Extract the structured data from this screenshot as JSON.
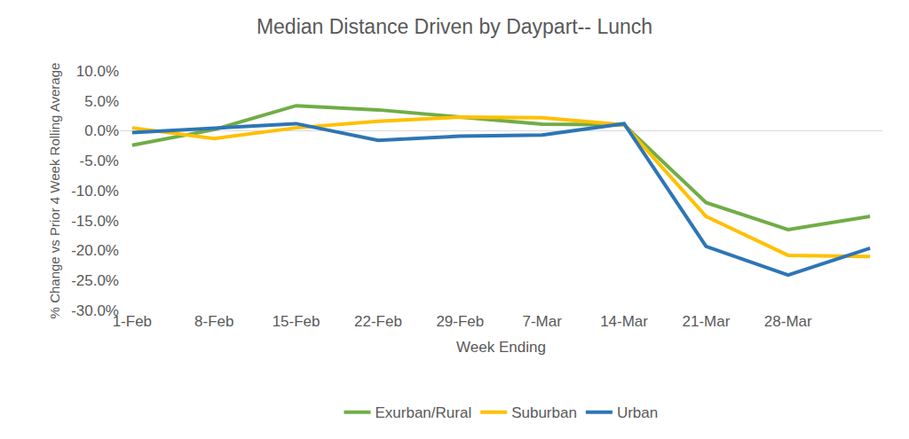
{
  "chart_data": {
    "type": "line",
    "title": "Median Distance Driven by Daypart-- Lunch",
    "x_label": "Week Ending",
    "y_label": "% Change vs Prior 4 Week Rolling Average",
    "categories": [
      "1-Feb",
      "8-Feb",
      "15-Feb",
      "22-Feb",
      "29-Feb",
      "7-Mar",
      "14-Mar",
      "21-Mar",
      "28-Mar",
      null
    ],
    "series": [
      {
        "name": "Exurban/Rural",
        "color": "#70ad47",
        "values": [
          -2.4,
          0.2,
          4.2,
          3.5,
          2.3,
          1.1,
          1.0,
          -12.0,
          -16.5,
          -14.3
        ]
      },
      {
        "name": "Suburban",
        "color": "#ffc000",
        "values": [
          0.5,
          -1.3,
          0.5,
          1.6,
          2.3,
          2.2,
          1.0,
          -14.3,
          -20.8,
          -21.0
        ]
      },
      {
        "name": "Urban",
        "color": "#2e75b6",
        "values": [
          -0.3,
          0.4,
          1.2,
          -1.6,
          -0.9,
          -0.7,
          1.2,
          -19.3,
          -24.1,
          -19.6
        ]
      }
    ],
    "ylim": [
      -30,
      10
    ],
    "yticks": [
      {
        "value": -30,
        "label": "-30.0%"
      },
      {
        "value": -25,
        "label": "-25.0%"
      },
      {
        "value": -20,
        "label": "-20.0%"
      },
      {
        "value": -15,
        "label": "-15.0%"
      },
      {
        "value": -10,
        "label": "-10.0%"
      },
      {
        "value": -5,
        "label": "-5.0%"
      },
      {
        "value": 0,
        "label": "0.0%"
      },
      {
        "value": 5,
        "label": "5.0%"
      },
      {
        "value": 10,
        "label": "10.0%"
      }
    ],
    "grid": false,
    "legend": "bottom"
  }
}
